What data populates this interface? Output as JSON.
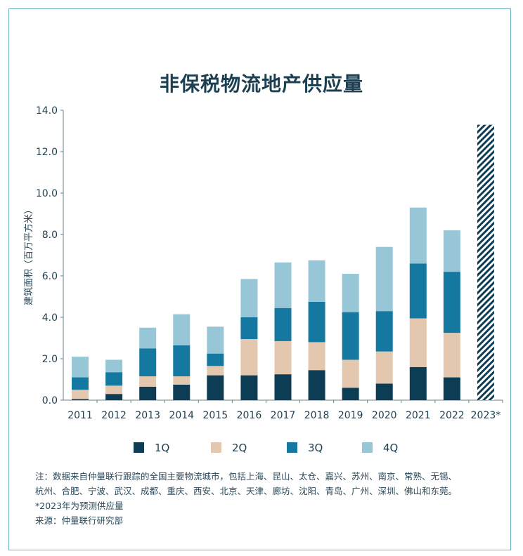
{
  "chart_data": {
    "type": "bar",
    "stacked": true,
    "title": "非保税物流地产供应量",
    "ylabel": "建筑面积（百万平方米）",
    "ylim": [
      0,
      14
    ],
    "yticks": [
      "0.0",
      "2.0",
      "4.0",
      "6.0",
      "8.0",
      "10.0",
      "12.0",
      "14.0"
    ],
    "categories": [
      "2011",
      "2012",
      "2013",
      "2014",
      "2015",
      "2016",
      "2017",
      "2018",
      "2019",
      "2020",
      "2021",
      "2022",
      "2023*"
    ],
    "series": [
      {
        "name": "1Q",
        "color": "#0d3d55",
        "values": [
          0.05,
          0.3,
          0.65,
          0.75,
          1.2,
          1.2,
          1.25,
          1.45,
          0.6,
          0.8,
          1.6,
          1.1,
          null
        ]
      },
      {
        "name": "2Q",
        "color": "#e3c7ae",
        "values": [
          0.45,
          0.4,
          0.5,
          0.4,
          0.45,
          1.75,
          1.6,
          1.35,
          1.35,
          1.55,
          2.35,
          2.15,
          null
        ]
      },
      {
        "name": "3Q",
        "color": "#1478a0",
        "values": [
          0.6,
          0.65,
          1.35,
          1.5,
          0.6,
          1.05,
          1.6,
          1.95,
          2.3,
          1.95,
          2.65,
          2.95,
          null
        ]
      },
      {
        "name": "4Q",
        "color": "#97c7d7",
        "values": [
          1.0,
          0.6,
          1.0,
          1.5,
          1.3,
          1.85,
          2.2,
          2.0,
          1.85,
          3.1,
          2.7,
          2.0,
          null
        ]
      }
    ],
    "forecast": {
      "category": "2023*",
      "value": 13.3
    },
    "legend_position": "bottom"
  },
  "notes": {
    "line1": "注：数据来自仲量联行跟踪的全国主要物流城市，包括上海、昆山、太仓、嘉兴、苏州、南京、常熟、无锡、",
    "line2": "杭州、合肥、宁波、武汉、成都、重庆、西安、北京、天津、廊坊、沈阳、青岛、广州、深圳、佛山和东莞。",
    "forecast_note": "*2023年为预测供应量",
    "source": "来源：仲量联行研究部"
  }
}
